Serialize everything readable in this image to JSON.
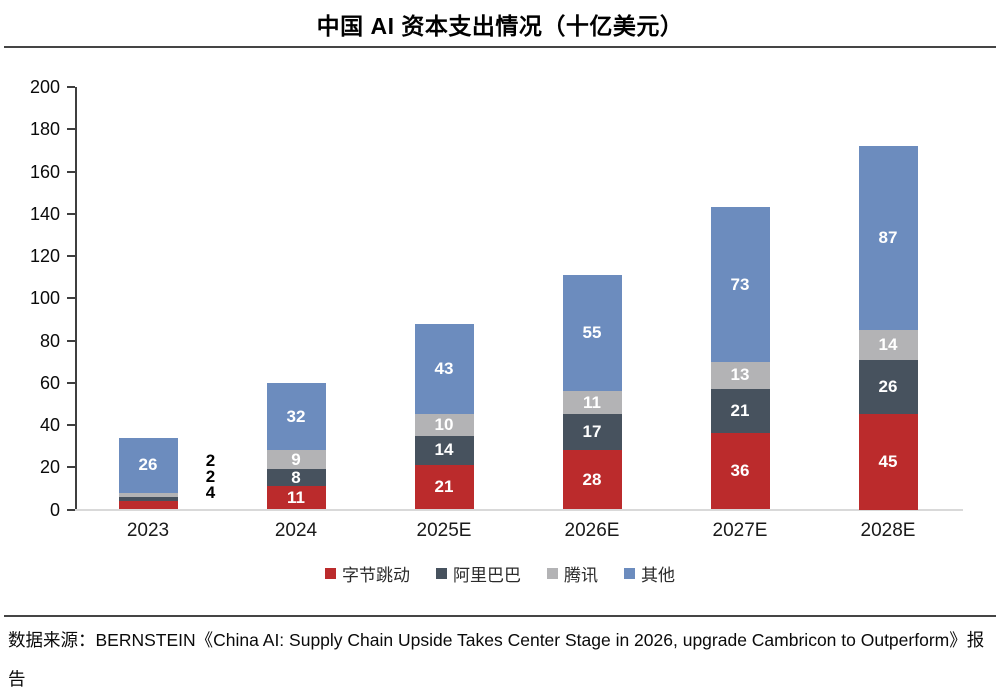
{
  "title": "中国 AI 资本支出情况（十亿美元）",
  "source": "数据来源：BERNSTEIN《China AI: Supply Chain Upside Takes Center Stage in 2026, upgrade Cambricon to Outperform》报告",
  "colors": {
    "bytedance_red": "#BB2B2C",
    "alibaba_slate": "#47525E",
    "tencent_gray": "#B3B3B5",
    "others_blue": "#6C8CBE",
    "axis": "#3F3F3F",
    "baseline": "#D9D9D9",
    "divider": "#454545"
  },
  "chart_data": {
    "type": "bar",
    "stacked": true,
    "title": "中国 AI 资本支出情况（十亿美元）",
    "categories": [
      "2023",
      "2024",
      "2025E",
      "2026E",
      "2027E",
      "2028E"
    ],
    "series": [
      {
        "name": "字节跳动",
        "color": "#BB2B2C",
        "values": [
          4,
          11,
          21,
          28,
          36,
          45
        ]
      },
      {
        "name": "阿里巴巴",
        "color": "#47525E",
        "values": [
          2,
          8,
          14,
          17,
          21,
          26
        ]
      },
      {
        "name": "腾讯",
        "color": "#B3B3B5",
        "values": [
          2,
          9,
          10,
          11,
          13,
          14
        ]
      },
      {
        "name": "其他",
        "color": "#6C8CBE",
        "values": [
          26,
          32,
          43,
          55,
          73,
          87
        ]
      }
    ],
    "totals": [
      34,
      60,
      88,
      111,
      143,
      172
    ],
    "xlabel": "",
    "ylabel": "",
    "ylim": [
      0,
      200
    ],
    "ytick_step": 20,
    "yticks": [
      0,
      20,
      40,
      60,
      80,
      100,
      120,
      140,
      160,
      180,
      200
    ],
    "grid": false,
    "legend_position": "bottom",
    "value_labels": true,
    "note": "2023 small segment labels (2, 2, 4) shown outside bar to the right"
  }
}
